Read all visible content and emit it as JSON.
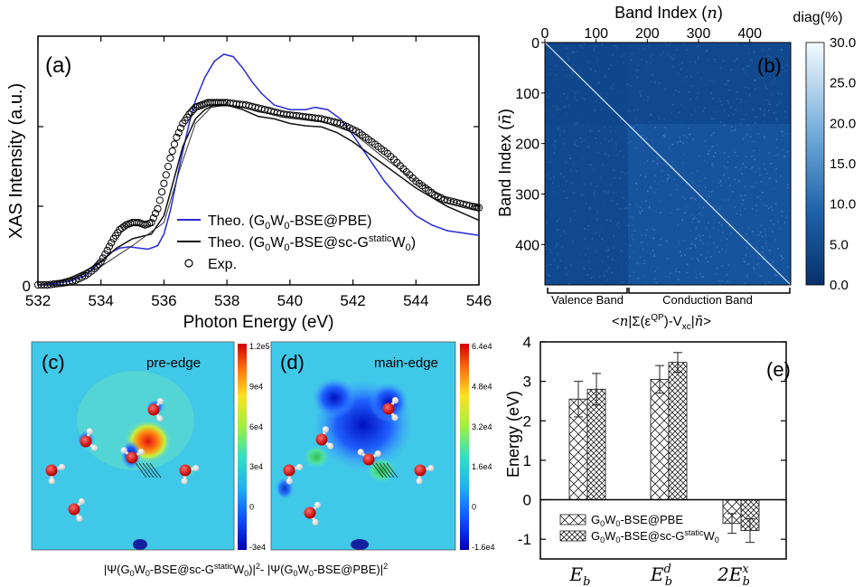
{
  "chart_data": [
    {
      "panel": "a",
      "type": "line",
      "panel_label": "(a)",
      "xlabel": "Photon Energy (eV)",
      "ylabel": "XAS Intensity (a.u.)",
      "xlim": [
        532,
        546
      ],
      "ylim": [
        0,
        1
      ],
      "xticks": [
        "532",
        "534",
        "536",
        "538",
        "540",
        "542",
        "544",
        "546"
      ],
      "ytick_labels": [
        "0"
      ],
      "legend_position": "lower-left-center",
      "series": [
        {
          "name": "Theo. (G0W0-BSE@PBE)",
          "legend": {
            "pre": "Theo. (G",
            "sub1": "0",
            "mid1": "W",
            "sub2": "0",
            "post": "-BSE@PBE)"
          },
          "style": "line",
          "color": "#2a2ad8",
          "x": [
            532.0,
            532.5,
            533.0,
            533.5,
            534.0,
            534.3,
            534.6,
            534.9,
            535.2,
            535.5,
            535.8,
            536.0,
            536.2,
            536.5,
            536.8,
            537.0,
            537.3,
            537.6,
            537.9,
            538.2,
            538.5,
            538.8,
            539.1,
            539.5,
            540.0,
            540.5,
            540.8,
            541.2,
            541.6,
            542.0,
            542.5,
            543.0,
            543.5,
            544.0,
            544.5,
            545.0,
            545.5,
            546.0
          ],
          "y": [
            0.0,
            0.005,
            0.015,
            0.04,
            0.1,
            0.14,
            0.16,
            0.165,
            0.16,
            0.155,
            0.17,
            0.22,
            0.32,
            0.52,
            0.7,
            0.8,
            0.9,
            0.97,
            1.0,
            0.99,
            0.94,
            0.88,
            0.83,
            0.78,
            0.76,
            0.76,
            0.77,
            0.76,
            0.72,
            0.65,
            0.55,
            0.45,
            0.37,
            0.3,
            0.26,
            0.235,
            0.225,
            0.215
          ]
        },
        {
          "name": "Theo. (G0W0-BSE@sc-GstaticW0)",
          "legend": {
            "pre": "Theo. (G",
            "sub1": "0",
            "mid1": "W",
            "sub2": "0",
            "mid2": "-BSE@sc-G",
            "sup": "static",
            "mid3": "W",
            "sub3": "0",
            "post": ")"
          },
          "style": "line",
          "color": "#111111",
          "x": [
            532.0,
            532.5,
            533.0,
            533.5,
            534.0,
            534.5,
            535.0,
            535.3,
            535.6,
            536.0,
            536.3,
            536.6,
            537.0,
            537.3,
            537.6,
            538.0,
            538.5,
            539.0,
            539.5,
            540.0,
            540.5,
            541.0,
            541.5,
            542.0,
            542.5,
            543.0,
            543.5,
            544.0,
            544.5,
            545.0,
            545.5,
            546.0
          ],
          "y": [
            0.0,
            0.01,
            0.03,
            0.06,
            0.1,
            0.16,
            0.2,
            0.21,
            0.22,
            0.3,
            0.45,
            0.6,
            0.72,
            0.76,
            0.78,
            0.78,
            0.76,
            0.73,
            0.72,
            0.7,
            0.69,
            0.685,
            0.66,
            0.62,
            0.57,
            0.52,
            0.47,
            0.42,
            0.38,
            0.34,
            0.31,
            0.28
          ]
        },
        {
          "name": "Theo. (G0W0-BSE@sc-GstaticW0) thin",
          "style": "line",
          "color": "#333333",
          "in_legend": false,
          "x": [
            532.0,
            533.0,
            534.0,
            535.0,
            536.0,
            536.5,
            537.0,
            537.5,
            538.0,
            538.5,
            539.0,
            540.0,
            541.0,
            542.0,
            543.0,
            544.0,
            545.0,
            546.0
          ],
          "y": [
            0.0,
            0.02,
            0.08,
            0.17,
            0.27,
            0.5,
            0.7,
            0.77,
            0.78,
            0.77,
            0.75,
            0.73,
            0.71,
            0.66,
            0.55,
            0.45,
            0.37,
            0.32
          ]
        },
        {
          "name": "Exp.",
          "style": "markers",
          "color": "#000000",
          "x": [
            532.0,
            532.3,
            532.6,
            532.9,
            533.2,
            533.5,
            533.8,
            534.0,
            534.2,
            534.4,
            534.6,
            534.8,
            535.0,
            535.2,
            535.4,
            535.6,
            535.8,
            536.0,
            536.2,
            536.4,
            536.6,
            536.8,
            537.0,
            537.2,
            537.4,
            537.6,
            537.8,
            538.0,
            538.3,
            538.6,
            538.9,
            539.2,
            539.5,
            539.8,
            540.1,
            540.4,
            540.7,
            541.0,
            541.3,
            541.6,
            541.9,
            542.2,
            542.5,
            542.8,
            543.1,
            543.4,
            543.7,
            544.0,
            544.3,
            544.6,
            544.9,
            545.2,
            545.5,
            545.8,
            546.0
          ],
          "y": [
            0.0,
            0.0,
            0.005,
            0.01,
            0.02,
            0.04,
            0.07,
            0.1,
            0.15,
            0.2,
            0.24,
            0.26,
            0.27,
            0.27,
            0.26,
            0.27,
            0.33,
            0.44,
            0.55,
            0.64,
            0.7,
            0.74,
            0.77,
            0.78,
            0.79,
            0.79,
            0.79,
            0.79,
            0.785,
            0.78,
            0.77,
            0.76,
            0.75,
            0.74,
            0.735,
            0.73,
            0.725,
            0.72,
            0.71,
            0.7,
            0.68,
            0.66,
            0.63,
            0.6,
            0.57,
            0.53,
            0.49,
            0.45,
            0.42,
            0.39,
            0.37,
            0.36,
            0.35,
            0.34,
            0.335
          ]
        }
      ]
    },
    {
      "panel": "b",
      "type": "heatmap",
      "panel_label": "(b)",
      "xlabel": "Band Index (n)",
      "ylabel": "Band Index (n̄)",
      "xticks": [
        "0",
        "100",
        "200",
        "300",
        "400"
      ],
      "yticks": [
        "0",
        "100",
        "200",
        "300",
        "400"
      ],
      "range": [
        0,
        480
      ],
      "valence_conduction_split": 163,
      "colorbar_label": "diag(%)",
      "colorbar_ticks": [
        "30.0",
        "25.0",
        "20.0",
        "15.0",
        "10.0",
        "5.0",
        "0.0"
      ],
      "colorbar_range": [
        0,
        30
      ],
      "region_labels": [
        "Valence Band",
        "Conduction Band"
      ],
      "caption": "<n|Σ(εQP)-Vxc|n̄>",
      "caption_parts": {
        "pre": "<",
        "n1": "n",
        "mid1": "|Σ(ε",
        "sup": "QP",
        "mid2": ")-V",
        "sub": "xc",
        "mid3": "|",
        "n2": "n̄",
        "post": ">"
      }
    },
    {
      "panel": "c",
      "type": "heatmap",
      "panel_label": "(c)",
      "title": "pre-edge",
      "colorbar_ticks": [
        "1.2e5",
        "9e4",
        "6e4",
        "3e4",
        "0",
        "-3e4"
      ]
    },
    {
      "panel": "d",
      "type": "heatmap",
      "panel_label": "(d)",
      "title": "main-edge",
      "colorbar_ticks": [
        "6.4e4",
        "4.8e4",
        "3.2e4",
        "1.6e4",
        "0",
        "-1.6e4"
      ]
    },
    {
      "panel": "cd_caption",
      "text_parts": {
        "a": "|Ψ(G",
        "s1": "0",
        "b": "W",
        "s2": "0",
        "c": "-BSE@sc-G",
        "sup1": "static",
        "d": "W",
        "s3": "0",
        "e": ")|",
        "sup2": "2",
        "f": "- |Ψ(G",
        "s4": "0",
        "g": "W",
        "s5": "0",
        "h": "-BSE@PBE)|",
        "sup3": "2"
      }
    },
    {
      "panel": "e",
      "type": "bar",
      "panel_label": "(e)",
      "ylabel": "Energy (eV)",
      "ylim": [
        -1.5,
        4
      ],
      "yticks": [
        "4",
        "3",
        "2",
        "1",
        "0",
        "-1"
      ],
      "categories": [
        {
          "base": "E",
          "sub": "b",
          "sup": "",
          "prefix": ""
        },
        {
          "base": "E",
          "sub": "b",
          "sup": "d",
          "prefix": ""
        },
        {
          "base": "E",
          "sub": "b",
          "sup": "x",
          "prefix": "2"
        }
      ],
      "series": [
        {
          "name": "G0W0-BSE@PBE",
          "legend": {
            "pre": "G",
            "s1": "0",
            "m": "W",
            "s2": "0",
            "post": "-BSE@PBE"
          },
          "values": [
            2.55,
            3.05,
            -0.6
          ],
          "errors": [
            0.45,
            0.35,
            0.25
          ]
        },
        {
          "name": "G0W0-BSE@sc-GstaticW0",
          "legend": {
            "pre": "G",
            "s1": "0",
            "m": "W",
            "s2": "0",
            "m2": "-BSE@sc-G",
            "sup": "static",
            "m3": "W",
            "s3": "0",
            "post": ""
          },
          "values": [
            2.8,
            3.48,
            -0.78
          ],
          "errors": [
            0.4,
            0.25,
            0.3
          ]
        }
      ],
      "legend_position": "bottom-left"
    }
  ]
}
